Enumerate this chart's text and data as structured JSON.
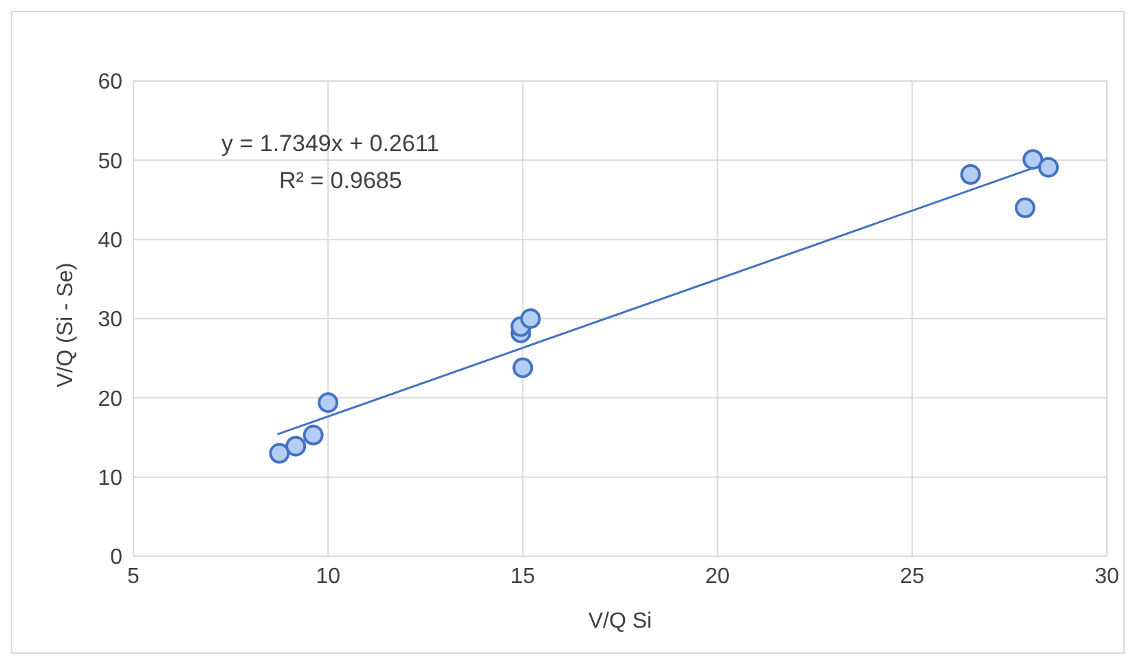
{
  "chart_data": {
    "type": "scatter",
    "xlabel": "V/Q Si",
    "ylabel": "V/Q (Si - Se)",
    "xlim": [
      5,
      30
    ],
    "xticks": [
      5,
      10,
      15,
      20,
      25,
      30
    ],
    "ylim": [
      0,
      60
    ],
    "yticks": [
      0,
      10,
      20,
      30,
      40,
      50,
      60
    ],
    "grid": true,
    "marker": "circle",
    "annotations": [
      "y = 1.7349x + 0.2611",
      "R² = 0.9685"
    ],
    "series": [
      {
        "color": "#4472c4",
        "x": [
          8.75,
          9.17,
          9.62,
          10.0,
          14.95,
          14.95,
          15.0,
          15.2,
          26.5,
          28.1,
          28.5,
          27.9
        ],
        "values": [
          13.0,
          13.9,
          15.3,
          19.4,
          28.2,
          29.0,
          23.8,
          30.0,
          48.2,
          50.1,
          49.1,
          44.0
        ]
      },
      {
        "type": "line",
        "color": "#4472c4",
        "marker": "none",
        "x": [
          8.7,
          28.5
        ],
        "values": [
          15.4,
          49.7
        ]
      }
    ]
  }
}
